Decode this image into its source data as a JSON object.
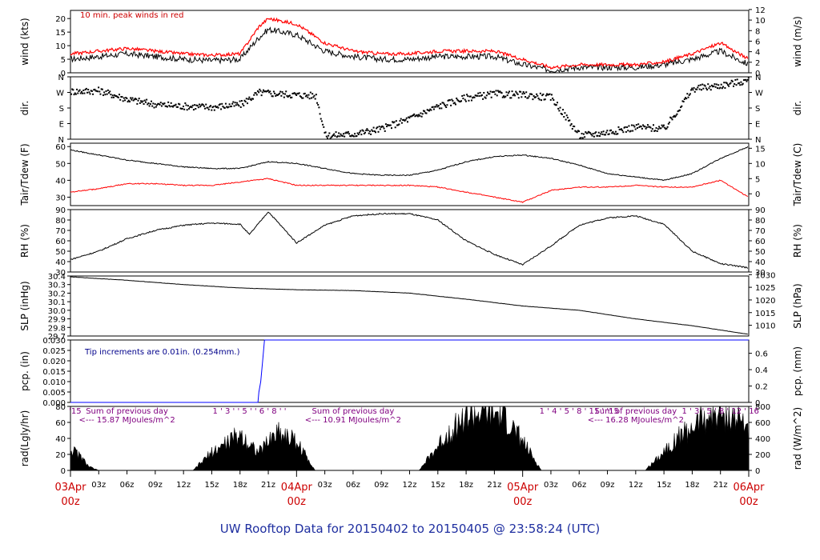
{
  "figure": {
    "title": "UW Rooftop Data for 20150402  to  20150405 @ 23:58:24  (UTC)",
    "time_axis": {
      "minor_ticks": [
        "03z",
        "06z",
        "09z",
        "12z",
        "15z",
        "18z",
        "21z",
        "03z",
        "06z",
        "09z",
        "12z",
        "15z",
        "18z",
        "21z",
        "03z",
        "06z",
        "09z",
        "12z",
        "15z",
        "18z",
        "21z"
      ],
      "major_ticks": [
        {
          "date": "03Apr",
          "hour": "00z"
        },
        {
          "date": "04Apr",
          "hour": "00z"
        },
        {
          "date": "05Apr",
          "hour": "00z"
        },
        {
          "date": "06Apr",
          "hour": "00z"
        }
      ]
    }
  },
  "chart_data": [
    {
      "type": "line",
      "panel": "wind",
      "ylabel": "wind (kts)",
      "ylabel_right": "wind (m/s)",
      "ylim": [
        0,
        23
      ],
      "yticks": [
        "0",
        "5",
        "10",
        "15",
        "20"
      ],
      "yticks_right": [
        "0",
        "2",
        "4",
        "6",
        "8",
        "10",
        "12"
      ],
      "annotation": "10 min. peak winds in red",
      "x_hours": [
        0,
        3,
        6,
        9,
        12,
        15,
        18,
        20,
        21,
        24,
        27,
        30,
        33,
        36,
        39,
        42,
        45,
        48,
        51,
        54,
        57,
        60,
        63,
        66,
        69,
        72
      ],
      "series": [
        {
          "values": [
            5,
            6,
            7,
            6,
            5,
            4.5,
            5,
            13,
            16,
            14,
            8,
            6,
            5,
            5,
            6,
            6,
            6,
            3,
            1,
            2,
            2,
            2,
            3,
            5,
            8,
            3
          ],
          "color": "#000000"
        },
        {
          "values": [
            7,
            8,
            9,
            8,
            7,
            6.5,
            7,
            17,
            20,
            18,
            11,
            8,
            7,
            7,
            8,
            8,
            8,
            5,
            2,
            3,
            3,
            3,
            4,
            7,
            11,
            5
          ],
          "color": "#ff0000"
        }
      ]
    },
    {
      "type": "scatter",
      "panel": "dir",
      "ylabel": "dir.",
      "yticks": [
        "N",
        "E",
        "S",
        "W",
        "N"
      ],
      "x_hours": [
        0,
        3,
        6,
        9,
        12,
        15,
        18,
        20,
        21,
        24,
        26,
        27,
        30,
        33,
        36,
        39,
        42,
        45,
        48,
        51,
        54,
        57,
        60,
        63,
        66,
        69,
        72
      ],
      "values_deg": [
        275,
        280,
        230,
        200,
        190,
        185,
        200,
        270,
        265,
        255,
        250,
        20,
        30,
        60,
        120,
        190,
        240,
        260,
        255,
        240,
        20,
        40,
        70,
        60,
        290,
        310,
        340
      ]
    },
    {
      "type": "line",
      "panel": "temp",
      "ylabel": "Tair/Tdew (F)",
      "ylabel_right": "Tair/Tdew (C)",
      "ylim": [
        25,
        62
      ],
      "yticks": [
        "30",
        "40",
        "50",
        "60"
      ],
      "yticks_right": [
        "0",
        "5",
        "10",
        "15"
      ],
      "x_hours": [
        0,
        3,
        6,
        9,
        12,
        15,
        18,
        21,
        24,
        27,
        30,
        33,
        36,
        39,
        42,
        45,
        48,
        51,
        54,
        57,
        60,
        63,
        66,
        69,
        72
      ],
      "series": [
        {
          "values": [
            58,
            55,
            52,
            50,
            48,
            47,
            47,
            51,
            50,
            47,
            44,
            43,
            43,
            46,
            51,
            54,
            55,
            53,
            49,
            44,
            42,
            40,
            44,
            53,
            60
          ],
          "color": "#000000"
        },
        {
          "values": [
            33,
            35,
            38,
            38,
            37,
            37,
            39,
            41,
            37,
            37,
            37,
            37,
            37,
            36,
            33,
            30,
            27,
            34,
            36,
            36,
            37,
            36,
            36,
            40,
            30
          ],
          "color": "#ff0000"
        }
      ]
    },
    {
      "type": "line",
      "panel": "rh",
      "ylabel": "RH (%)",
      "ylabel_right": "RH (%)",
      "ylim": [
        30,
        90
      ],
      "yticks": [
        "30",
        "40",
        "50",
        "60",
        "70",
        "80",
        "90"
      ],
      "yticks_right": [
        "30",
        "40",
        "50",
        "60",
        "70",
        "80",
        "90"
      ],
      "x_hours": [
        0,
        3,
        6,
        9,
        12,
        15,
        18,
        19,
        21,
        24,
        27,
        30,
        33,
        36,
        39,
        42,
        45,
        48,
        51,
        54,
        57,
        60,
        63,
        66,
        69,
        72
      ],
      "series": [
        {
          "values": [
            42,
            50,
            62,
            70,
            75,
            77,
            76,
            66,
            88,
            58,
            75,
            84,
            86,
            86,
            80,
            60,
            47,
            37,
            55,
            75,
            82,
            84,
            76,
            50,
            38,
            34
          ],
          "color": "#000000"
        }
      ]
    },
    {
      "type": "line",
      "panel": "slp",
      "ylabel": "SLP (inHg)",
      "ylabel_right": "SLP (hPa)",
      "ylim": [
        29.7,
        30.4
      ],
      "yticks": [
        "29.7",
        "29.8",
        "29.9",
        "30.0",
        "30.1",
        "30.2",
        "30.3",
        "30.4"
      ],
      "yticks_right": [
        "1010",
        "1015",
        "1020",
        "1025",
        "1030"
      ],
      "x_hours": [
        0,
        6,
        12,
        18,
        24,
        30,
        36,
        42,
        48,
        54,
        60,
        66,
        72
      ],
      "series": [
        {
          "values": [
            30.39,
            30.35,
            30.3,
            30.26,
            30.24,
            30.23,
            30.2,
            30.13,
            30.05,
            30.0,
            29.9,
            29.82,
            29.72
          ],
          "color": "#000000"
        }
      ]
    },
    {
      "type": "line",
      "panel": "pcp",
      "ylabel": "pcp. (in)",
      "ylabel_right": "pcp. (mm)",
      "ylim": [
        0,
        0.03
      ],
      "yticks": [
        "0.000",
        "0.005",
        "0.010",
        "0.015",
        "0.020",
        "0.025",
        "0.030"
      ],
      "yticks_right": [
        "0",
        "0.2",
        "0.4",
        "0.6"
      ],
      "annotation": "Tip increments are 0.01in. (0.254mm.)",
      "x_hours": [
        0,
        19.9,
        20.0,
        20.2,
        20.4,
        20.6,
        21,
        72
      ],
      "series": [
        {
          "values": [
            0,
            0,
            0.005,
            0.01,
            0.02,
            0.03,
            0.03,
            0.03
          ],
          "color": "#0000ff"
        }
      ]
    },
    {
      "type": "area",
      "panel": "rad",
      "ylabel": "rad(Lgly/hr)",
      "ylabel_right": "rad (W/m^2)",
      "ylim": [
        0,
        80
      ],
      "yticks": [
        "0",
        "20",
        "40",
        "60",
        "80"
      ],
      "yticks_right": [
        "0",
        "200",
        "400",
        "600",
        "800"
      ],
      "top_labels": [
        {
          "text": "'15",
          "color": "#800080"
        },
        {
          "text": "1 ' 3 ' ' 5 ' ' 6 ' 8 ' '",
          "color": "#800080"
        },
        {
          "text": "1 ' 4 ' 5 ' 8 ' 11 ' '15",
          "color": "#800080"
        },
        {
          "text": "1 ' 3 ' 5 ' 8 ' 12 ' 16",
          "color": "#800080"
        }
      ],
      "sum_notes": [
        {
          "line1": "Sum of previous day",
          "line2": "<--- 15.87 MJoules/m^2"
        },
        {
          "line1": "Sum of previous day",
          "line2": "<--- 10.91 MJoules/m^2"
        },
        {
          "line1": "Sum of previous day",
          "line2": "<--- 16.28 MJoules/m^2"
        }
      ],
      "x_hours": [
        0,
        1,
        2,
        3,
        13,
        15,
        18,
        20,
        22,
        24,
        26,
        37,
        40,
        42,
        44,
        46,
        48,
        50,
        61,
        64,
        67,
        69,
        71,
        72
      ],
      "series": [
        {
          "values": [
            30,
            20,
            5,
            0,
            0,
            25,
            50,
            25,
            55,
            40,
            0,
            0,
            50,
            75,
            80,
            75,
            40,
            0,
            0,
            40,
            70,
            80,
            70,
            60
          ],
          "color": "#000000"
        }
      ]
    }
  ]
}
